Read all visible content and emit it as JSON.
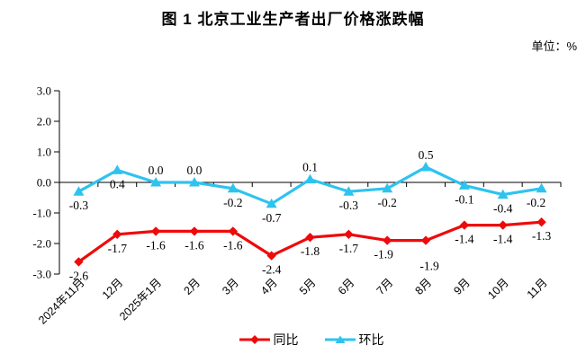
{
  "title": "图 1  北京工业生产者出厂价格涨跌幅",
  "unit_label": "单位：%",
  "chart_data": {
    "type": "line",
    "categories": [
      "2024年11月",
      "12月",
      "2025年1月",
      "2月",
      "3月",
      "4月",
      "5月",
      "6月",
      "7月",
      "8月",
      "9月",
      "10月",
      "11月"
    ],
    "series": [
      {
        "id": "yoy",
        "name": "同比",
        "color": "#ee0a0a",
        "marker": "diamond",
        "values": [
          -2.6,
          -1.7,
          -1.6,
          -1.6,
          -1.6,
          -2.4,
          -1.8,
          -1.7,
          -1.9,
          -1.9,
          -1.4,
          -1.4,
          -1.3
        ],
        "label_side": [
          "below",
          "below",
          "below",
          "below",
          "below",
          "below",
          "below",
          "below",
          "below",
          "below",
          "below",
          "below",
          "below"
        ],
        "label_dx": [
          0,
          0,
          0,
          0,
          0,
          0,
          0,
          0,
          -4,
          4,
          0,
          0,
          0
        ],
        "label_dy": [
          0,
          0,
          0,
          0,
          0,
          0,
          0,
          0,
          0,
          13,
          0,
          0,
          0
        ]
      },
      {
        "id": "mom",
        "name": "环比",
        "color": "#2ec3ef",
        "marker": "triangle",
        "values": [
          -0.3,
          0.4,
          0.0,
          0.0,
          -0.2,
          -0.7,
          0.1,
          -0.3,
          -0.2,
          0.5,
          -0.1,
          -0.4,
          -0.2
        ],
        "label_side": [
          "below",
          "below",
          "above",
          "above",
          "below",
          "below",
          "above",
          "below",
          "below",
          "above",
          "below",
          "below",
          "below"
        ],
        "label_dx": [
          0,
          0,
          0,
          0,
          0,
          0,
          0,
          0,
          0,
          0,
          0,
          0,
          -6
        ],
        "label_dy": [
          0,
          0,
          0,
          0,
          0,
          0,
          0,
          0,
          0,
          0,
          0,
          0,
          0
        ]
      }
    ],
    "ylim": [
      -3.0,
      3.0
    ],
    "yticks": [
      3.0,
      2.0,
      1.0,
      0.0,
      -1.0,
      -2.0,
      -3.0
    ],
    "grid": false,
    "legend_position": "bottom",
    "axis_color": "#000000"
  },
  "legend": {
    "items": [
      {
        "label": "同比",
        "color": "#ee0a0a",
        "marker": "diamond"
      },
      {
        "label": "环比",
        "color": "#2ec3ef",
        "marker": "triangle"
      }
    ]
  }
}
